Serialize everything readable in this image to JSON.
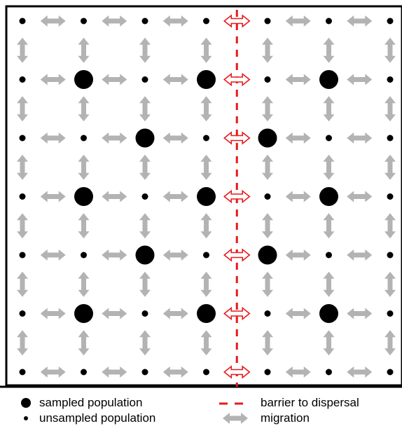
{
  "grid": {
    "rows": 7,
    "cols": 7,
    "sampled": [
      [
        1,
        1
      ],
      [
        1,
        3
      ],
      [
        1,
        5
      ],
      [
        2,
        2
      ],
      [
        2,
        4
      ],
      [
        3,
        1
      ],
      [
        3,
        3
      ],
      [
        3,
        5
      ],
      [
        4,
        2
      ],
      [
        4,
        4
      ],
      [
        5,
        1
      ],
      [
        5,
        3
      ],
      [
        5,
        5
      ]
    ],
    "barrier_between_cols": [
      3,
      4
    ]
  },
  "colors": {
    "migration": "#b3b3b3",
    "barrier": "#e8191c",
    "population": "#000000",
    "frame": "#000000"
  },
  "legend": {
    "sampled_label": "sampled population",
    "unsampled_label": "unsampled population",
    "barrier_label": "barrier to dispersal",
    "migration_label": "migration"
  }
}
